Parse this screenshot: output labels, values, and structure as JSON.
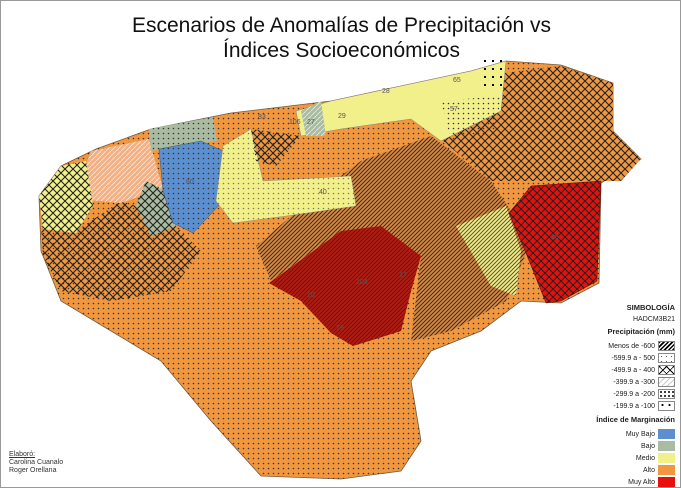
{
  "title_line1": "Escenarios de Anomalías de Precipitación vs",
  "title_line2": "Índices Socioeconómicos",
  "legend": {
    "heading": "SIMBOLOGÍA",
    "scenario": "HADCM3B21",
    "precip_heading": "Precipitación (mm)",
    "precip_items": [
      {
        "label": "Menos de -600",
        "pattern": "dense-diagonal"
      },
      {
        "label": "-599.9 a - 500",
        "pattern": "sparse-dots"
      },
      {
        "label": "-499.9 a - 400",
        "pattern": "crosshatch"
      },
      {
        "label": "-399.9 a -300",
        "pattern": "light-diagonal"
      },
      {
        "label": "-299.9 a -200",
        "pattern": "dots"
      },
      {
        "label": "-199.9 a -100",
        "pattern": "large-dots"
      }
    ],
    "margin_heading": "Índice de Marginación",
    "margin_items": [
      {
        "label": "Muy Bajo",
        "color": "#5b8fd0"
      },
      {
        "label": "Bajo",
        "color": "#a9bba0"
      },
      {
        "label": "Medio",
        "color": "#f2f08a"
      },
      {
        "label": "Alto",
        "color": "#f0973f"
      },
      {
        "label": "Muy Alto",
        "color": "#e8100c"
      }
    ]
  },
  "credits": {
    "label": "Elaboró:",
    "names": [
      "Carolina Cuanalo",
      "Roger Orellana"
    ]
  },
  "map_labels": [
    "65",
    "28",
    "29",
    "57",
    "83",
    "106",
    "27",
    "60",
    "40",
    "18",
    "104",
    "17",
    "79",
    "10"
  ]
}
